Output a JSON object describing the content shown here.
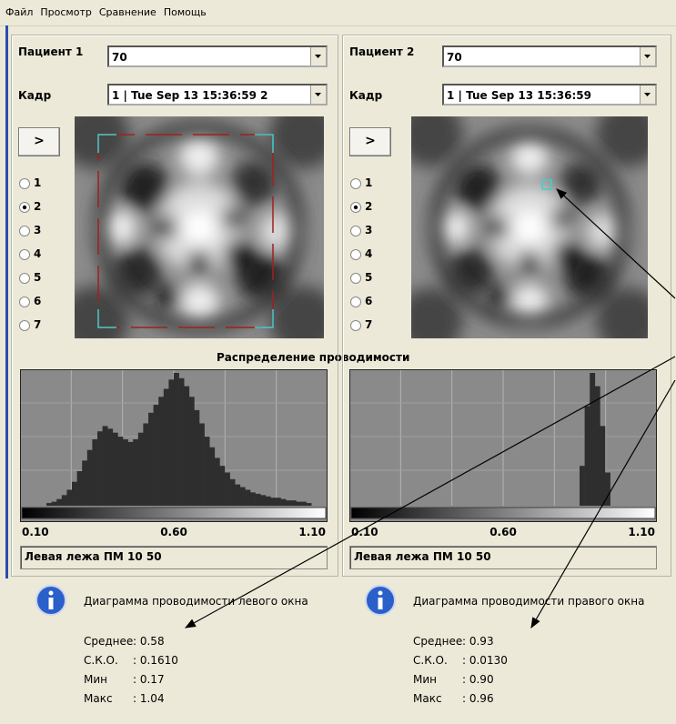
{
  "menu": [
    "Файл",
    "Просмотр",
    "Сравнение",
    "Помощь"
  ],
  "section_title": "Распределение проводимости",
  "left_panel": {
    "patient_label": "Пациент 1",
    "patient_value": "70",
    "frame_label": "Кадр",
    "frame_value": "1 | Tue Sep 13 15:36:59 2",
    "button": ">",
    "radios": [
      "1",
      "2",
      "3",
      "4",
      "5",
      "6",
      "7"
    ],
    "selected_radio": 1,
    "histogram": {
      "values": [
        0,
        0,
        0,
        0,
        0,
        2,
        3,
        5,
        8,
        12,
        18,
        26,
        34,
        42,
        50,
        56,
        60,
        58,
        55,
        52,
        50,
        48,
        50,
        55,
        62,
        70,
        76,
        82,
        88,
        95,
        100,
        96,
        90,
        82,
        72,
        62,
        52,
        44,
        36,
        30,
        25,
        20,
        16,
        14,
        12,
        10,
        9,
        8,
        7,
        6,
        6,
        5,
        4,
        4,
        3,
        3,
        2,
        0,
        0,
        0
      ],
      "axis_labels": [
        "0.10",
        "0.60",
        "1.10"
      ]
    },
    "status": "Левая лежа ПМ 10 50"
  },
  "right_panel": {
    "patient_label": "Пациент 2",
    "patient_value": "70",
    "frame_label": "Кадр",
    "frame_value": "1 | Tue Sep 13 15:36:59",
    "button": ">",
    "radios": [
      "1",
      "2",
      "3",
      "4",
      "5",
      "6",
      "7"
    ],
    "selected_radio": 1,
    "histogram": {
      "values": [
        0,
        0,
        0,
        0,
        0,
        0,
        0,
        0,
        0,
        0,
        0,
        0,
        0,
        0,
        0,
        0,
        0,
        0,
        0,
        0,
        0,
        0,
        0,
        0,
        0,
        0,
        0,
        0,
        0,
        0,
        0,
        0,
        0,
        0,
        0,
        0,
        0,
        0,
        0,
        0,
        0,
        0,
        0,
        0,
        0,
        30,
        75,
        100,
        90,
        60,
        25,
        0,
        0,
        0,
        0,
        0,
        0,
        0,
        0,
        0
      ],
      "axis_labels": [
        "0.10",
        "0.60",
        "1.10"
      ]
    },
    "status": "Левая лежа ПМ 10 50"
  },
  "left_info": {
    "title": "Диаграмма проводимости левого окна",
    "rows": [
      {
        "label": "Среднее",
        "value": ": 0.58"
      },
      {
        "label": "С.К.О.",
        "value": ": 0.1610"
      },
      {
        "label": "Мин",
        "value": ": 0.17"
      },
      {
        "label": "Макс",
        "value": ": 1.04"
      }
    ]
  },
  "right_info": {
    "title": "Диаграмма проводимости правого окна",
    "rows": [
      {
        "label": "Среднее",
        "value": ": 0.93"
      },
      {
        "label": "С.К.О.",
        "value": ": 0.0130"
      },
      {
        "label": "Мин",
        "value": ": 0.90"
      },
      {
        "label": "Макс",
        "value": ": 0.96"
      }
    ]
  }
}
